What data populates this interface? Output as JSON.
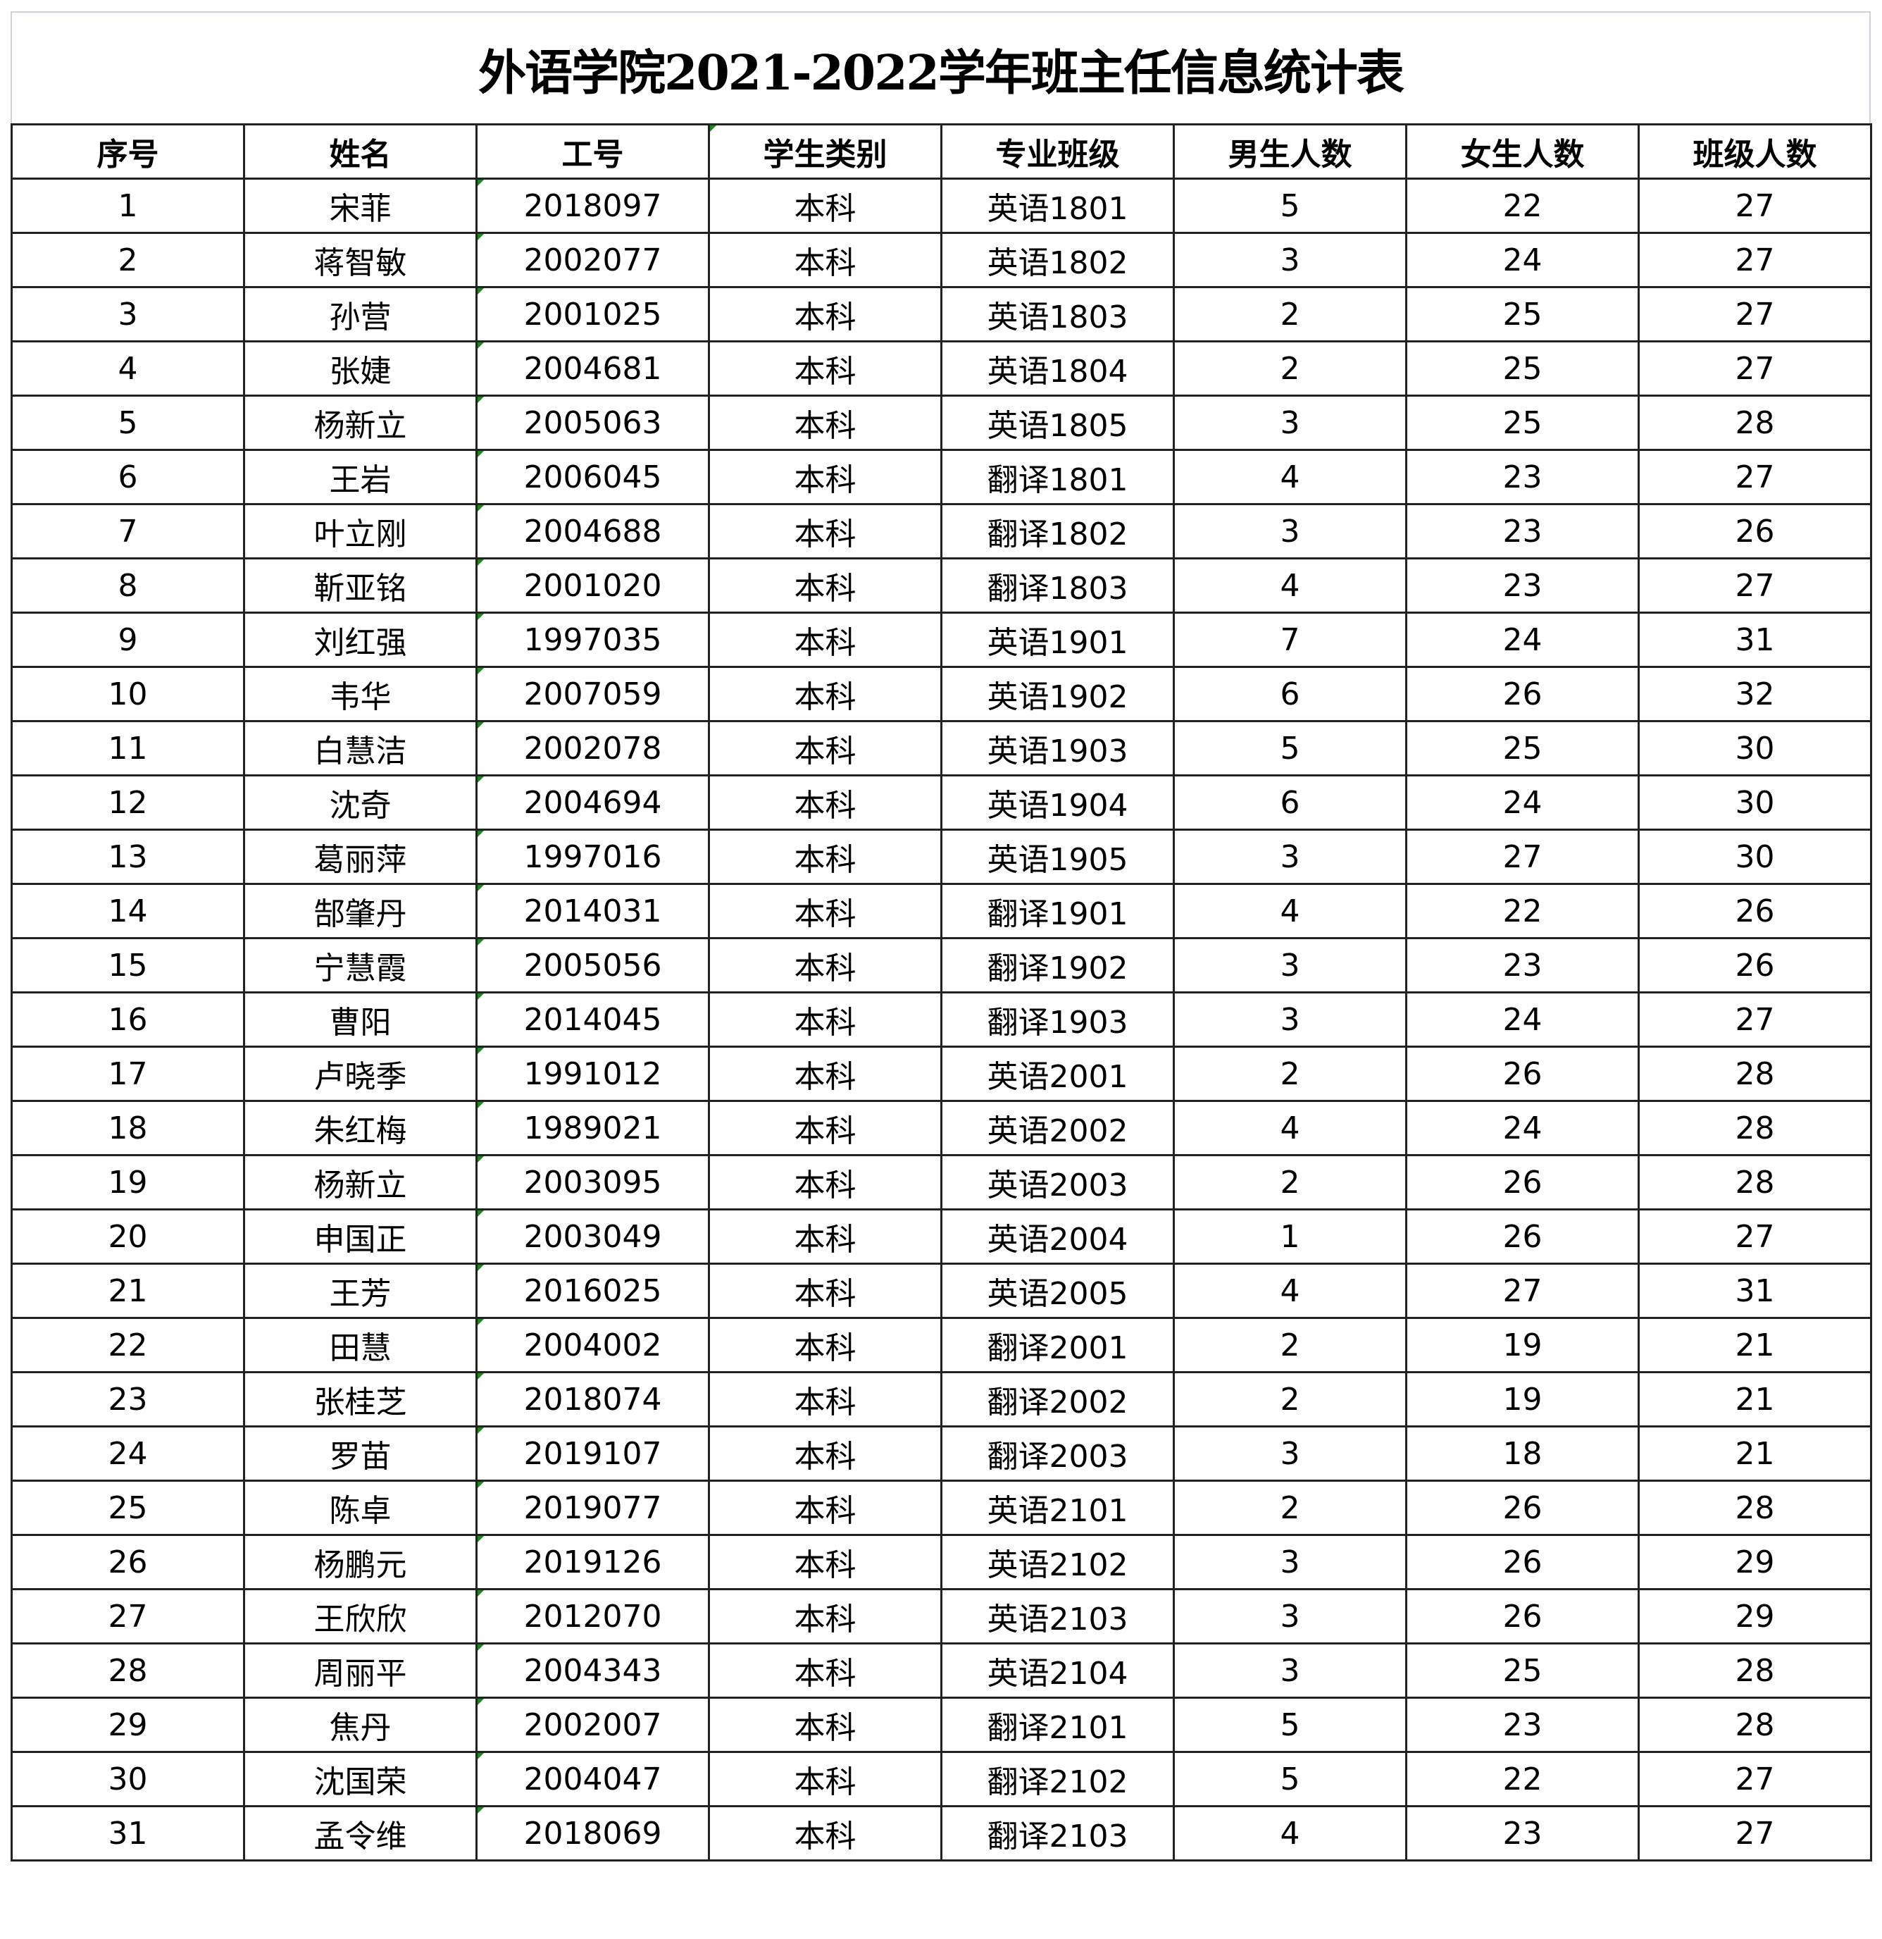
{
  "title": "外语学院2021-2022学年班主任信息统计表",
  "colors": {
    "comment_marker": "#1a8a1a",
    "grid": "#222222"
  },
  "columns": [
    "序号",
    "姓名",
    "工号",
    "学生类别",
    "专业班级",
    "男生人数",
    "女生人数",
    "班级人数"
  ],
  "rows": [
    [
      "1",
      "宋菲",
      "2018097",
      "本科",
      "英语1801",
      "5",
      "22",
      "27"
    ],
    [
      "2",
      "蒋智敏",
      "2002077",
      "本科",
      "英语1802",
      "3",
      "24",
      "27"
    ],
    [
      "3",
      "孙营",
      "2001025",
      "本科",
      "英语1803",
      "2",
      "25",
      "27"
    ],
    [
      "4",
      "张婕",
      "2004681",
      "本科",
      "英语1804",
      "2",
      "25",
      "27"
    ],
    [
      "5",
      "杨新立",
      "2005063",
      "本科",
      "英语1805",
      "3",
      "25",
      "28"
    ],
    [
      "6",
      "王岩",
      "2006045",
      "本科",
      "翻译1801",
      "4",
      "23",
      "27"
    ],
    [
      "7",
      "叶立刚",
      "2004688",
      "本科",
      "翻译1802",
      "3",
      "23",
      "26"
    ],
    [
      "8",
      "靳亚铭",
      "2001020",
      "本科",
      "翻译1803",
      "4",
      "23",
      "27"
    ],
    [
      "9",
      "刘红强",
      "1997035",
      "本科",
      "英语1901",
      "7",
      "24",
      "31"
    ],
    [
      "10",
      "韦华",
      "2007059",
      "本科",
      "英语1902",
      "6",
      "26",
      "32"
    ],
    [
      "11",
      "白慧洁",
      "2002078",
      "本科",
      "英语1903",
      "5",
      "25",
      "30"
    ],
    [
      "12",
      "沈奇",
      "2004694",
      "本科",
      "英语1904",
      "6",
      "24",
      "30"
    ],
    [
      "13",
      "葛丽萍",
      "1997016",
      "本科",
      "英语1905",
      "3",
      "27",
      "30"
    ],
    [
      "14",
      "郜肇丹",
      "2014031",
      "本科",
      "翻译1901",
      "4",
      "22",
      "26"
    ],
    [
      "15",
      "宁慧霞",
      "2005056",
      "本科",
      "翻译1902",
      "3",
      "23",
      "26"
    ],
    [
      "16",
      "曹阳",
      "2014045",
      "本科",
      "翻译1903",
      "3",
      "24",
      "27"
    ],
    [
      "17",
      "卢晓季",
      "1991012",
      "本科",
      "英语2001",
      "2",
      "26",
      "28"
    ],
    [
      "18",
      "朱红梅",
      "1989021",
      "本科",
      "英语2002",
      "4",
      "24",
      "28"
    ],
    [
      "19",
      "杨新立",
      "2003095",
      "本科",
      "英语2003",
      "2",
      "26",
      "28"
    ],
    [
      "20",
      "申国正",
      "2003049",
      "本科",
      "英语2004",
      "1",
      "26",
      "27"
    ],
    [
      "21",
      "王芳",
      "2016025",
      "本科",
      "英语2005",
      "4",
      "27",
      "31"
    ],
    [
      "22",
      "田慧",
      "2004002",
      "本科",
      "翻译2001",
      "2",
      "19",
      "21"
    ],
    [
      "23",
      "张桂芝",
      "2018074",
      "本科",
      "翻译2002",
      "2",
      "19",
      "21"
    ],
    [
      "24",
      "罗苗",
      "2019107",
      "本科",
      "翻译2003",
      "3",
      "18",
      "21"
    ],
    [
      "25",
      "陈卓",
      "2019077",
      "本科",
      "英语2101",
      "2",
      "26",
      "28"
    ],
    [
      "26",
      "杨鹏元",
      "2019126",
      "本科",
      "英语2102",
      "3",
      "26",
      "29"
    ],
    [
      "27",
      "王欣欣",
      "2012070",
      "本科",
      "英语2103",
      "3",
      "26",
      "29"
    ],
    [
      "28",
      "周丽平",
      "2004343",
      "本科",
      "英语2104",
      "3",
      "25",
      "28"
    ],
    [
      "29",
      "焦丹",
      "2002007",
      "本科",
      "翻译2101",
      "5",
      "23",
      "28"
    ],
    [
      "30",
      "沈国荣",
      "2004047",
      "本科",
      "翻译2102",
      "5",
      "22",
      "27"
    ],
    [
      "31",
      "孟令维",
      "2018069",
      "本科",
      "翻译2103",
      "4",
      "23",
      "27"
    ]
  ]
}
